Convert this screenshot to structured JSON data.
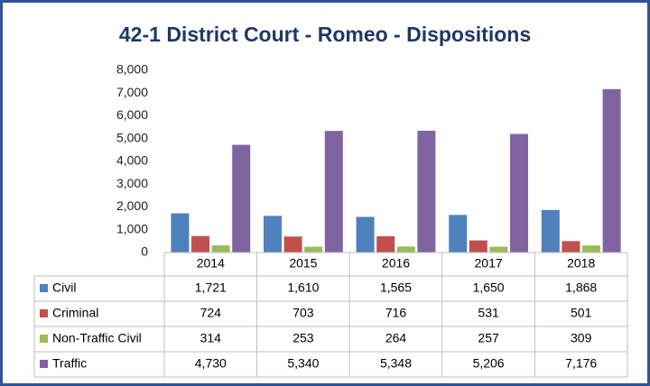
{
  "chart_data": {
    "type": "bar",
    "title": "42-1 District Court - Romeo - Dispositions",
    "categories": [
      "2014",
      "2015",
      "2016",
      "2017",
      "2018"
    ],
    "series": [
      {
        "name": "Civil",
        "color": "#4f81bd",
        "values": [
          1721,
          1610,
          1565,
          1650,
          1868
        ],
        "value_labels": [
          "1,721",
          "1,610",
          "1,565",
          "1,650",
          "1,868"
        ]
      },
      {
        "name": "Criminal",
        "color": "#c0504d",
        "values": [
          724,
          703,
          716,
          531,
          501
        ]
      },
      {
        "name": "Non-Traffic Civil",
        "color": "#9bbb59",
        "values": [
          314,
          253,
          264,
          257,
          309
        ]
      },
      {
        "name": "Traffic",
        "color": "#8064a2",
        "values": [
          4730,
          5340,
          5348,
          5206,
          7176
        ],
        "value_labels": [
          "4,730",
          "5,340",
          "5,348",
          "5,206",
          "7,176"
        ]
      }
    ],
    "ylim": [
      0,
      8000
    ],
    "yticks": [
      0,
      {
        "value": 1000,
        "label": "1,000"
      },
      {
        "value": 2000,
        "label": "2,000"
      },
      {
        "value": 3000,
        "label": "3,000"
      },
      {
        "value": 4000,
        "label": "4,000"
      },
      {
        "value": 5000,
        "label": "5,000"
      },
      {
        "value": 6000,
        "label": "6,000"
      },
      {
        "value": 7000,
        "label": "7,000"
      },
      {
        "value": 8000,
        "label": "8,000"
      }
    ],
    "grid": false
  }
}
